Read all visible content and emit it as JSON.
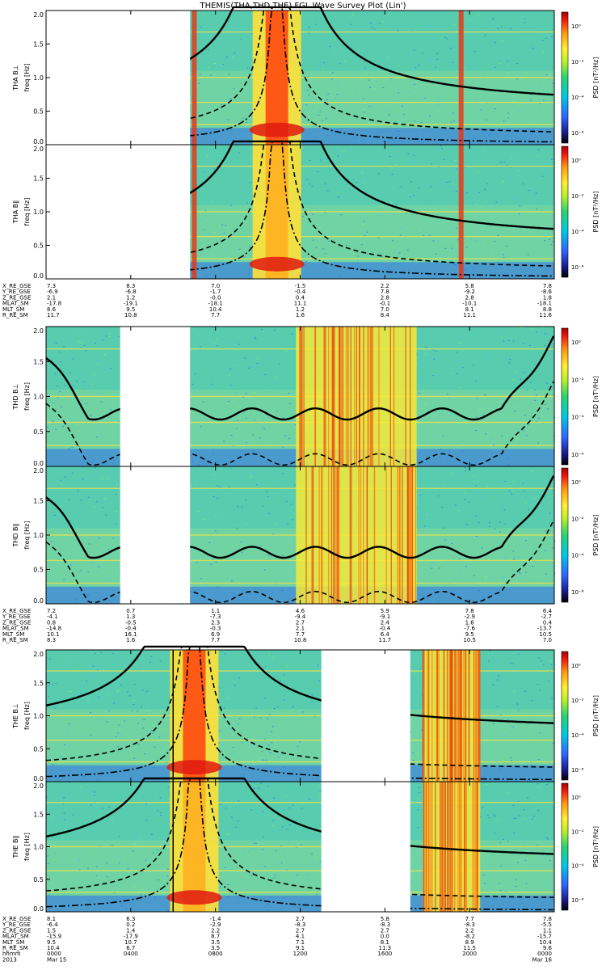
{
  "title": "THEMIS(THA,THD,THE) FGL Wave Survey Plot (Lin')",
  "chart_data": [
    {
      "type": "heatmap",
      "probe": "THA",
      "panels": [
        {
          "ylabel_top": "THA B⊥",
          "ylabel_bottom": "freq [Hz]",
          "cbar_label": "PSD [nT²/Hz]",
          "cbar_ticks": [
            "10⁰",
            "10⁻²",
            "10⁻⁴",
            "10⁻⁶"
          ],
          "zlim": [
            1e-07,
            10
          ]
        },
        {
          "ylabel_top": "THA B∥",
          "ylabel_bottom": "freq [Hz]",
          "cbar_label": "PSD [nT²/Hz]",
          "cbar_ticks": [
            "10⁰",
            "10⁻²",
            "10⁻⁴",
            "10⁻⁶"
          ],
          "zlim": [
            1e-07,
            10
          ]
        }
      ],
      "ylim": [
        0,
        2.0
      ],
      "yticks": [
        "2.0",
        "1.5",
        "1.0",
        "0.5",
        "0.0"
      ],
      "xlim_hours": [
        0,
        24
      ],
      "data_gaps_hours": [
        [
          0,
          6.8
        ]
      ],
      "spike_hours": [
        7.0,
        19.6
      ],
      "core_hours": 10.9,
      "lines": {
        "solid_center": 10.9,
        "solid_floor": 0.5,
        "dashed_floor": 0.1,
        "dashdot_center": 10.9
      }
    },
    {
      "type": "heatmap",
      "probe": "THD",
      "panels": [
        {
          "ylabel_top": "THD B⊥",
          "ylabel_bottom": "freq [Hz]",
          "cbar_label": "PSD [nT²/Hz]",
          "cbar_ticks": [
            "10⁰",
            "10⁻²",
            "10⁻⁴",
            "10⁻⁶"
          ],
          "zlim": [
            1e-07,
            10
          ]
        },
        {
          "ylabel_top": "THD B∥",
          "ylabel_bottom": "freq [Hz]",
          "cbar_label": "PSD [nT²/Hz]",
          "cbar_ticks": [
            "10⁰",
            "10⁻²",
            "10⁻⁴",
            "10⁻⁶"
          ],
          "zlim": [
            1e-07,
            10
          ]
        }
      ],
      "ylim": [
        0,
        2.0
      ],
      "yticks": [
        "2.0",
        "1.5",
        "1.0",
        "0.5",
        "0.0"
      ],
      "xlim_hours": [
        0,
        24
      ],
      "data_gaps_hours": [
        [
          3.5,
          6.8
        ]
      ],
      "active_band_hours": [
        11.8,
        17.5
      ],
      "lines": {
        "solid_floor": 0.75,
        "dashed_floor": 0.1
      }
    },
    {
      "type": "heatmap",
      "probe": "THE",
      "panels": [
        {
          "ylabel_top": "THE B⊥",
          "ylabel_bottom": "freq [Hz]",
          "cbar_label": "PSD [nT²/Hz]",
          "cbar_ticks": [
            "10⁰",
            "10⁻²",
            "10⁻⁴",
            "10⁻⁶"
          ],
          "zlim": [
            1e-07,
            10
          ]
        },
        {
          "ylabel_top": "THE B∥",
          "ylabel_bottom": "freq [Hz]",
          "cbar_label": "PSD [nT²/Hz]",
          "cbar_ticks": [
            "10⁰",
            "10⁻²",
            "10⁻⁴",
            "10⁻⁶"
          ],
          "zlim": [
            1e-07,
            10
          ]
        }
      ],
      "ylim": [
        0,
        2.0
      ],
      "yticks": [
        "2.0",
        "1.5",
        "1.0",
        "0.5",
        "0.0"
      ],
      "xlim_hours": [
        0,
        24
      ],
      "data_gaps_hours": [
        [
          13.0,
          17.2
        ]
      ],
      "core_hours": 7.0,
      "active_band_hours": [
        17.8,
        20.5
      ],
      "marker_hours": 6.0,
      "lines": {
        "solid_center": 7.0,
        "solid_floor": 0.7,
        "dashed_floor": 0.15,
        "dashdot_center": 7.0
      }
    }
  ],
  "ephemeris": [
    {
      "labels": [
        "X_RE_GSE",
        "Y_RE_GSE",
        "Z_RE_GSE",
        "MLAT_SM",
        "MLT_SM",
        "R_RE_SM"
      ],
      "columns": [
        [
          "7.3",
          "-6.9",
          "2.1",
          "-17.8",
          "8.6",
          "11.7"
        ],
        [
          "8.3",
          "-6.8",
          "1.2",
          "-19.1",
          "9.5",
          "10.8"
        ],
        [
          "7.0",
          "-1.7",
          "-0.0",
          "-18.1",
          "10.4",
          "7.7"
        ],
        [
          "-1.5",
          "-0.4",
          "0.4",
          "11.1",
          "1.2",
          "1.6"
        ],
        [
          "2.2",
          "7.8",
          "2.8",
          "-0.1",
          "7.0",
          "8.4"
        ],
        [
          "5.8",
          "-9.2",
          "2.8",
          "-10.1",
          "8.1",
          "11.1"
        ],
        [
          "7.8",
          "-8.6",
          "1.8",
          "-18.1",
          "8.8",
          "11.6"
        ]
      ]
    },
    {
      "labels": [
        "X_RE_GSE",
        "Y_RE_GSE",
        "Z_RE_GSE",
        "MLAT_SM",
        "MLT_SM",
        "R_RE_SM"
      ],
      "columns": [
        [
          "7.2",
          "-4.1",
          "0.8",
          "-14.8",
          "10.1",
          "8.3"
        ],
        [
          "0.7",
          "1.3",
          "-0.5",
          "-0.4",
          "16.1",
          "1.6"
        ],
        [
          "1.1",
          "-7.3",
          "2.3",
          "-0.3",
          "6.9",
          "7.7"
        ],
        [
          "4.6",
          "-9.4",
          "2.7",
          "2.1",
          "7.7",
          "10.8"
        ],
        [
          "5.9",
          "-9.1",
          "2.4",
          "-0.4",
          "6.4",
          "11.7"
        ],
        [
          "7.8",
          "-2.9",
          "1.6",
          "-7.6",
          "9.5",
          "10.5"
        ],
        [
          "6.4",
          "-2.7",
          "0.4",
          "-13.7",
          "10.5",
          "7.0"
        ]
      ]
    },
    {
      "labels": [
        "X_RE_GSE",
        "Y_RE_GSE",
        "Z_RE_GSE",
        "MLAT_SM",
        "MLT_SM",
        "R_RE_SM",
        "hhmm",
        "2013"
      ],
      "columns": [
        [
          "8.1",
          "-6.4",
          "1.5",
          "-15.9",
          "9.5",
          "10.4",
          "0000",
          "Mar 15"
        ],
        [
          "6.3",
          "0.2",
          "1.4",
          "-17.9",
          "10.7",
          "6.7",
          "0400",
          ""
        ],
        [
          "-1.4",
          "-2.9",
          "2.2",
          "8.7",
          "3.5",
          "3.5",
          "0800",
          ""
        ],
        [
          "2.7",
          "-8.3",
          "2.7",
          "4.1",
          "7.1",
          "9.1",
          "1200",
          ""
        ],
        [
          "5.8",
          "-8.3",
          "2.7",
          "0.0",
          "8.1",
          "11.3",
          "1600",
          ""
        ],
        [
          "7.7",
          "-8.3",
          "2.2",
          "-8.2",
          "8.9",
          "11.5",
          "2000",
          ""
        ],
        [
          "7.8",
          "-5.5",
          "1.1",
          "-15.7",
          "10.4",
          "9.6",
          "0000",
          "Mar 16"
        ]
      ]
    }
  ]
}
